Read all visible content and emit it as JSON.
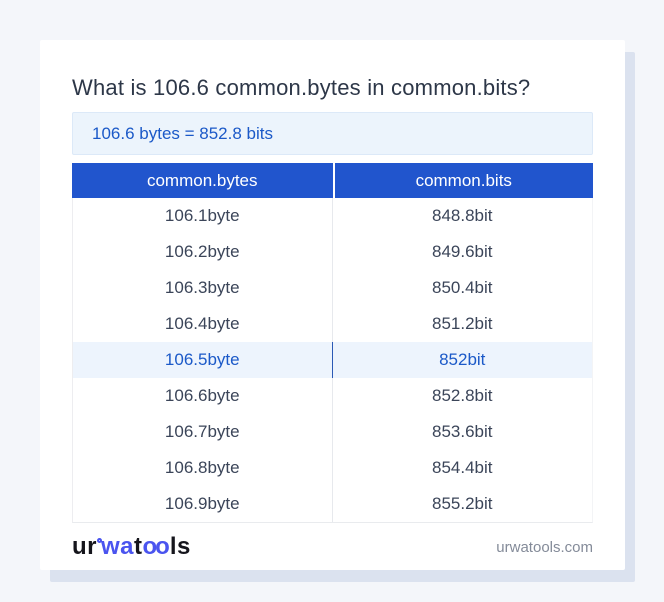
{
  "title": "What is 106.6 common.bytes in common.bits?",
  "result": "106.6 bytes = 852.8 bits",
  "table": {
    "headers": {
      "from": "common.bytes",
      "to": "common.bits"
    },
    "rows": [
      {
        "bytes": "106.1byte",
        "bits": "848.8bit"
      },
      {
        "bytes": "106.2byte",
        "bits": "849.6bit"
      },
      {
        "bytes": "106.3byte",
        "bits": "850.4bit"
      },
      {
        "bytes": "106.4byte",
        "bits": "851.2bit"
      },
      {
        "bytes": "106.5byte",
        "bits": "852bit"
      },
      {
        "bytes": "106.6byte",
        "bits": "852.8bit"
      },
      {
        "bytes": "106.7byte",
        "bits": "853.6bit"
      },
      {
        "bytes": "106.8byte",
        "bits": "854.4bit"
      },
      {
        "bytes": "106.9byte",
        "bits": "855.2bit"
      }
    ],
    "highlighted_row_index": 4
  },
  "footer": {
    "logo": {
      "p1": "ur",
      "p2": "wa",
      "p3": "t",
      "p4": "oo",
      "p5": "ls"
    },
    "site": "urwatools.com"
  },
  "colors": {
    "header_blue": "#2155cd",
    "accent_blue_text": "#1b59c8",
    "logo_blue": "#4a54ef",
    "result_box_bg": "#ecf4fc",
    "highlight_row_bg": "#edf4fd",
    "page_bg": "#f4f6fa",
    "card_shadow": "#dbe2ef",
    "body_text": "#3b4559",
    "muted_text": "#848b99"
  }
}
